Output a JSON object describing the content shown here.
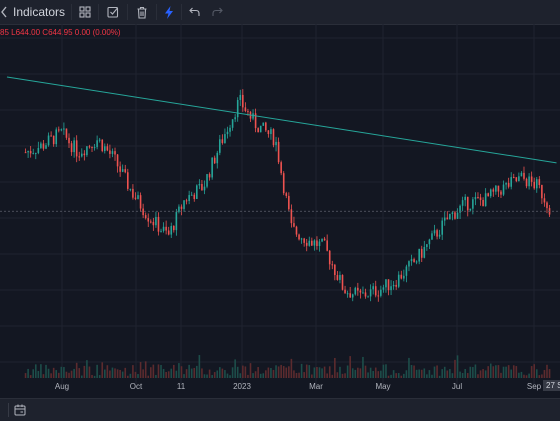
{
  "toolbar": {
    "indicators_label": "Indicators",
    "icons": [
      "indicators-icon",
      "templates-icon",
      "alert-check-icon",
      "trash-icon",
      "replay-lightning-icon",
      "undo-icon",
      "redo-icon"
    ]
  },
  "legend": {
    "prefix": "85",
    "low_label": "L",
    "low_value": "644.00",
    "close_label": "C",
    "close_value": "644.95",
    "change": "0.00 (0.00%)"
  },
  "xaxis": {
    "labels": [
      "Aug",
      "Oct",
      "11",
      "2023",
      "Mar",
      "May",
      "Jul",
      "Sep"
    ],
    "cursor_label": "27 S"
  },
  "colors": {
    "background": "#131722",
    "up": "#26a69a",
    "down": "#ef5350",
    "trendline": "#26a69a",
    "legend_text": "#f23645"
  },
  "chart_data": {
    "type": "candlestick",
    "x": [
      "2022-07-01",
      "2022-07-15",
      "2022-08-01",
      "2022-08-15",
      "2022-09-01",
      "2022-09-15",
      "2022-10-01",
      "2022-10-15",
      "2022-11-01",
      "2022-11-15",
      "2022-12-01",
      "2022-12-15",
      "2023-01-01",
      "2023-01-15",
      "2023-02-01",
      "2023-02-15",
      "2023-03-01",
      "2023-03-15",
      "2023-04-01",
      "2023-04-15",
      "2023-05-01",
      "2023-05-15",
      "2023-06-01",
      "2023-06-15",
      "2023-07-01",
      "2023-07-15",
      "2023-08-01",
      "2023-08-15",
      "2023-09-01",
      "2023-09-15",
      "2023-09-27"
    ],
    "close": [
      700,
      706,
      718,
      700,
      712,
      694,
      662,
      640,
      622,
      656,
      668,
      706,
      748,
      726,
      712,
      628,
      618,
      612,
      572,
      566,
      572,
      580,
      598,
      618,
      640,
      652,
      656,
      666,
      676,
      668,
      645
    ],
    "trendline": {
      "start": [
        "2022-06-15",
        770
      ],
      "end": [
        "2023-10-01",
        690
      ]
    },
    "current_price_line": 645
  }
}
